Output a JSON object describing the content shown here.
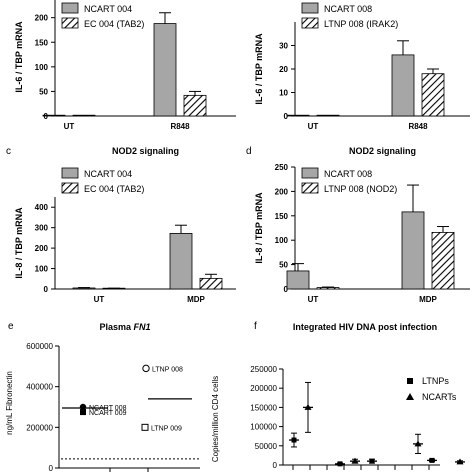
{
  "colors": {
    "ncart": "#a6a6a6",
    "axis": "#000000",
    "bg": "#ffffff"
  },
  "chart_data": [
    {
      "id": "a",
      "panel_label": "",
      "type": "bar",
      "title": "",
      "ylabel": "IL-6 / TBP mRNA",
      "ylim": [
        0,
        240
      ],
      "yticks": [
        "0",
        "50",
        "100",
        "150",
        "200"
      ],
      "categories": [
        "UT",
        "R848"
      ],
      "series": [
        {
          "name": "NCART 004",
          "pattern": "solid",
          "values": [
            0.5,
            188
          ],
          "errors": [
            0,
            22
          ]
        },
        {
          "name": "EC 004 (TAB2)",
          "pattern": "hatch",
          "values": [
            0.3,
            42
          ],
          "errors": [
            0,
            8
          ]
        }
      ]
    },
    {
      "id": "b",
      "panel_label": "",
      "type": "bar",
      "title": "",
      "ylabel": "IL-6 / TBP mRNA",
      "ylim": [
        0,
        40
      ],
      "yticks": [
        "0",
        "10",
        "20",
        "30"
      ],
      "categories": [
        "UT",
        "R848"
      ],
      "series": [
        {
          "name": "NCART 008",
          "pattern": "solid",
          "values": [
            0.2,
            26
          ],
          "errors": [
            0,
            6
          ]
        },
        {
          "name": "LTNP 008 (IRAK2)",
          "pattern": "hatch",
          "values": [
            0,
            18
          ],
          "errors": [
            0,
            2
          ]
        }
      ]
    },
    {
      "id": "c",
      "panel_label": "c",
      "type": "bar",
      "title": "NOD2 signaling",
      "ylabel": "IL-8 / TBP mRNA",
      "ylim": [
        0,
        450
      ],
      "yticks": [
        "0",
        "100",
        "200",
        "300",
        "400"
      ],
      "categories": [
        "UT",
        "MDP"
      ],
      "series": [
        {
          "name": "NCART 004",
          "pattern": "solid",
          "values": [
            5,
            272
          ],
          "errors": [
            2,
            40
          ]
        },
        {
          "name": "EC 004 (TAB2)",
          "pattern": "hatch",
          "values": [
            3,
            52
          ],
          "errors": [
            1,
            20
          ]
        }
      ]
    },
    {
      "id": "d",
      "panel_label": "d",
      "type": "bar",
      "title": "NOD2 signaling",
      "ylabel": "IL-8 / TBP mRNA",
      "ylim": [
        0,
        250
      ],
      "yticks": [
        "0",
        "50",
        "100",
        "150",
        "200",
        "250"
      ],
      "categories": [
        "UT",
        "MDP"
      ],
      "series": [
        {
          "name": "NCART 008",
          "pattern": "solid",
          "values": [
            37,
            158
          ],
          "errors": [
            15,
            55
          ]
        },
        {
          "name": "LTNP 008 (NOD2)",
          "pattern": "hatch",
          "values": [
            3,
            116
          ],
          "errors": [
            1,
            12
          ]
        }
      ]
    },
    {
      "id": "e",
      "panel_label": "e",
      "type": "scatter",
      "title_prefix": "Plasma ",
      "title_italic": "FN1",
      "ylabel": "ng/mL Fibronectin",
      "ylim": [
        0,
        600000
      ],
      "yticks": [
        "0",
        "200000",
        "400000",
        "600000"
      ],
      "points": [
        {
          "label": "LTNP 008",
          "marker": "open-circle",
          "value": 490000
        },
        {
          "label": "NCART 008",
          "marker": "filled-circle",
          "value": 300000
        },
        {
          "label": "NCART 009",
          "marker": "filled-square",
          "value": 275000
        },
        {
          "label": "LTNP 009",
          "marker": "open-square",
          "value": 200000
        }
      ],
      "reference_lines": [
        {
          "style": "solid",
          "value": 340000
        },
        {
          "style": "solid",
          "value": 295000
        },
        {
          "style": "dotted",
          "value": 45000
        }
      ]
    },
    {
      "id": "f",
      "panel_label": "f",
      "type": "scatter",
      "title": "Integrated HIV DNA post infection",
      "ylabel": "Copies/million CD4 cells",
      "ylim": [
        0,
        250000
      ],
      "yticks": [
        "0",
        "50000",
        "100000",
        "150000",
        "200000",
        "250000"
      ],
      "legend": [
        {
          "name": "LTNPs",
          "marker": "square"
        },
        {
          "name": "NCARTs",
          "marker": "triangle"
        }
      ],
      "points": [
        {
          "marker": "square",
          "value": 65000,
          "error": 18000
        },
        {
          "marker": "triangle",
          "value": 150000,
          "error": 65000
        },
        {
          "marker": "square",
          "value": 3000,
          "error": 2000
        },
        {
          "marker": "triangle",
          "value": 10000,
          "error": 5000
        },
        {
          "marker": "square",
          "value": 10000,
          "error": 5000
        },
        {
          "marker": "triangle",
          "value": 55000,
          "error": 25000
        },
        {
          "marker": "square",
          "value": 12000,
          "error": 3000
        },
        {
          "marker": "triangle",
          "value": 8000,
          "error": 3000
        }
      ]
    }
  ]
}
